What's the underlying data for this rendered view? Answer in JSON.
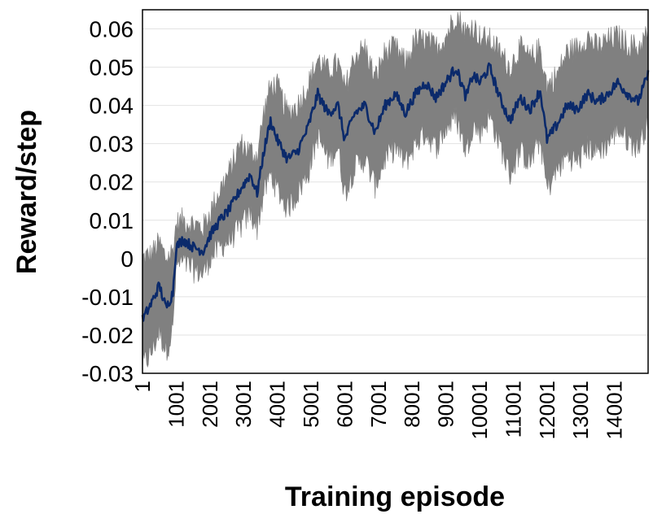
{
  "chart_data": {
    "type": "line",
    "title": "",
    "xlabel": "Training episode",
    "ylabel": "Reward/step",
    "ylim": [
      -0.03,
      0.065
    ],
    "yticks": [
      "-0.03",
      "-0.02",
      "-0.01",
      "0",
      "0.01",
      "0.02",
      "0.03",
      "0.04",
      "0.05",
      "0.06"
    ],
    "xticks": [
      "1",
      "1001",
      "2001",
      "3001",
      "4001",
      "5001",
      "6001",
      "7001",
      "8001",
      "9001",
      "10001",
      "11001",
      "12001",
      "13001",
      "14001"
    ],
    "xlim": [
      1,
      15000
    ],
    "grid": "horizontal",
    "legend": "none",
    "series": [
      {
        "role": "mean",
        "color": "#0b2a6b",
        "x": [
          1,
          250,
          500,
          700,
          900,
          1001,
          1200,
          1500,
          1800,
          2000,
          2300,
          2600,
          2900,
          3200,
          3400,
          3600,
          3800,
          4000,
          4300,
          4600,
          4900,
          5200,
          5500,
          5800,
          6000,
          6300,
          6600,
          6900,
          7200,
          7500,
          7800,
          8100,
          8400,
          8700,
          9000,
          9300,
          9600,
          9800,
          10001,
          10300,
          10600,
          10900,
          11200,
          11500,
          11800,
          12001,
          12300,
          12600,
          12900,
          13200,
          13500,
          13800,
          14100,
          14400,
          14700,
          15000
        ],
        "y": [
          -0.016,
          -0.012,
          -0.007,
          -0.013,
          -0.009,
          0.003,
          0.005,
          0.003,
          0.002,
          0.006,
          0.01,
          0.013,
          0.018,
          0.022,
          0.017,
          0.028,
          0.036,
          0.031,
          0.026,
          0.028,
          0.034,
          0.043,
          0.038,
          0.04,
          0.031,
          0.038,
          0.04,
          0.033,
          0.04,
          0.043,
          0.038,
          0.043,
          0.046,
          0.042,
          0.046,
          0.05,
          0.042,
          0.048,
          0.046,
          0.05,
          0.042,
          0.036,
          0.042,
          0.039,
          0.044,
          0.031,
          0.035,
          0.04,
          0.039,
          0.043,
          0.041,
          0.043,
          0.046,
          0.043,
          0.041,
          0.048
        ]
      },
      {
        "role": "spread",
        "color": "#808080",
        "x": [
          1,
          250,
          500,
          700,
          900,
          1001,
          1200,
          1500,
          1800,
          2000,
          2300,
          2600,
          2900,
          3200,
          3400,
          3600,
          3800,
          4000,
          4300,
          4600,
          4900,
          5200,
          5500,
          5800,
          6000,
          6300,
          6600,
          6900,
          7200,
          7500,
          7800,
          8100,
          8400,
          8700,
          9000,
          9300,
          9600,
          9800,
          10001,
          10300,
          10600,
          10900,
          11200,
          11500,
          11800,
          12001,
          12300,
          12600,
          12900,
          13200,
          13500,
          13800,
          14100,
          14400,
          14700,
          15000
        ],
        "upper": [
          0.0,
          0.001,
          0.004,
          0.0,
          0.002,
          0.009,
          0.01,
          0.009,
          0.008,
          0.012,
          0.018,
          0.023,
          0.03,
          0.028,
          0.027,
          0.038,
          0.045,
          0.045,
          0.038,
          0.04,
          0.045,
          0.052,
          0.049,
          0.051,
          0.044,
          0.053,
          0.055,
          0.047,
          0.054,
          0.055,
          0.051,
          0.057,
          0.057,
          0.055,
          0.058,
          0.064,
          0.059,
          0.061,
          0.058,
          0.057,
          0.054,
          0.05,
          0.055,
          0.052,
          0.055,
          0.045,
          0.048,
          0.054,
          0.055,
          0.058,
          0.055,
          0.057,
          0.058,
          0.056,
          0.055,
          0.059
        ],
        "lower": [
          -0.028,
          -0.025,
          -0.019,
          -0.024,
          -0.019,
          -0.002,
          -0.001,
          -0.003,
          -0.004,
          0.0,
          0.003,
          0.005,
          0.008,
          0.012,
          0.008,
          0.017,
          0.022,
          0.018,
          0.013,
          0.017,
          0.022,
          0.032,
          0.026,
          0.029,
          0.017,
          0.024,
          0.026,
          0.019,
          0.026,
          0.029,
          0.025,
          0.03,
          0.033,
          0.029,
          0.034,
          0.037,
          0.028,
          0.035,
          0.033,
          0.037,
          0.03,
          0.022,
          0.028,
          0.025,
          0.031,
          0.018,
          0.023,
          0.027,
          0.025,
          0.029,
          0.028,
          0.03,
          0.034,
          0.031,
          0.029,
          0.036
        ]
      }
    ]
  }
}
